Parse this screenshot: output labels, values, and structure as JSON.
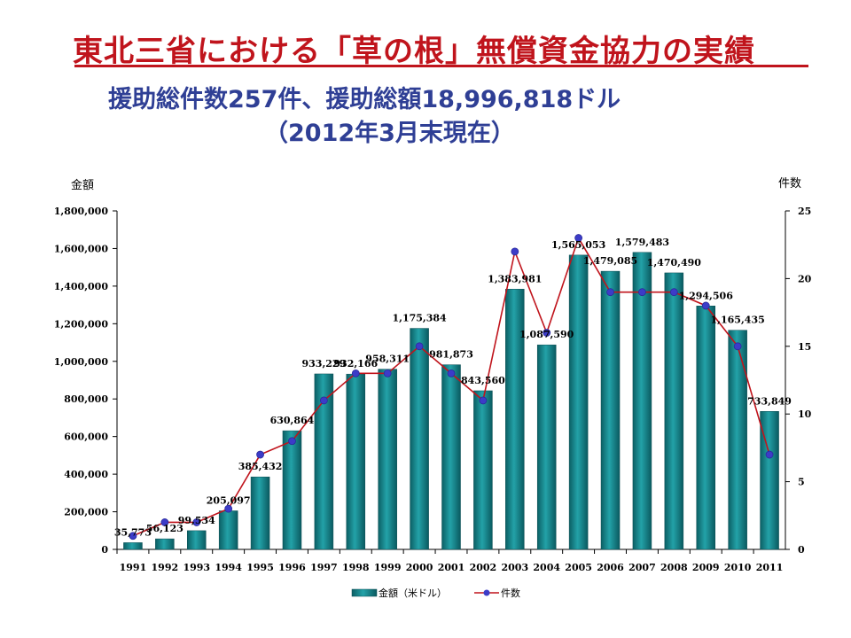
{
  "header": {
    "title": "東北三省における「草の根」無償資金協力の実績",
    "subtitle": "援助総件数257件、援助総額18,996,818ドル",
    "subtitle_date": "（2012年3月末現在）"
  },
  "colors": {
    "title": "#c0141c",
    "subtitle": "#2f3f95",
    "bar": "#0e7c82",
    "line": "#c0141c",
    "marker": "#3c3cc8"
  },
  "chart_data": {
    "type": "bar",
    "y_left_label": "金額",
    "y_right_label": "件数",
    "ylim": [
      0,
      1800000
    ],
    "y2lim": [
      0,
      25
    ],
    "yticks": [
      "0",
      "200,000",
      "400,000",
      "600,000",
      "800,000",
      "1,000,000",
      "1,200,000",
      "1,400,000",
      "1,600,000",
      "1,800,000"
    ],
    "y2ticks": [
      "0",
      "5",
      "10",
      "15",
      "20",
      "25"
    ],
    "categories": [
      "1991",
      "1992",
      "1993",
      "1994",
      "1995",
      "1996",
      "1997",
      "1998",
      "1999",
      "2000",
      "2001",
      "2002",
      "2003",
      "2004",
      "2005",
      "2006",
      "2007",
      "2008",
      "2009",
      "2010",
      "2011"
    ],
    "series": [
      {
        "name": "金額（米ドル）",
        "type": "bar",
        "values": [
          35773,
          56123,
          99534,
          205097,
          385432,
          630864,
          933229,
          932166,
          958311,
          1175384,
          981873,
          843560,
          1383981,
          1087590,
          1565053,
          1479085,
          1579483,
          1470490,
          1294506,
          1165435,
          733849
        ],
        "labels": [
          "35,773",
          "56,123",
          "99,534",
          "205,097",
          "385,432",
          "630,864",
          "933,229",
          "932,166",
          "958,311",
          "1,175,384",
          "981,873",
          "843,560",
          "1,383,981",
          "1,087,590",
          "1,565,053",
          "1,479,085",
          "1,579,483",
          "1,470,490",
          "1,294,506",
          "1,165,435",
          "733,849"
        ]
      },
      {
        "name": "件数",
        "type": "line",
        "axis": "right",
        "values": [
          1,
          2,
          2,
          3,
          7,
          8,
          11,
          13,
          13,
          15,
          13,
          11,
          22,
          16,
          23,
          19,
          19,
          19,
          18,
          15,
          7
        ]
      }
    ],
    "legend_position": "bottom"
  }
}
